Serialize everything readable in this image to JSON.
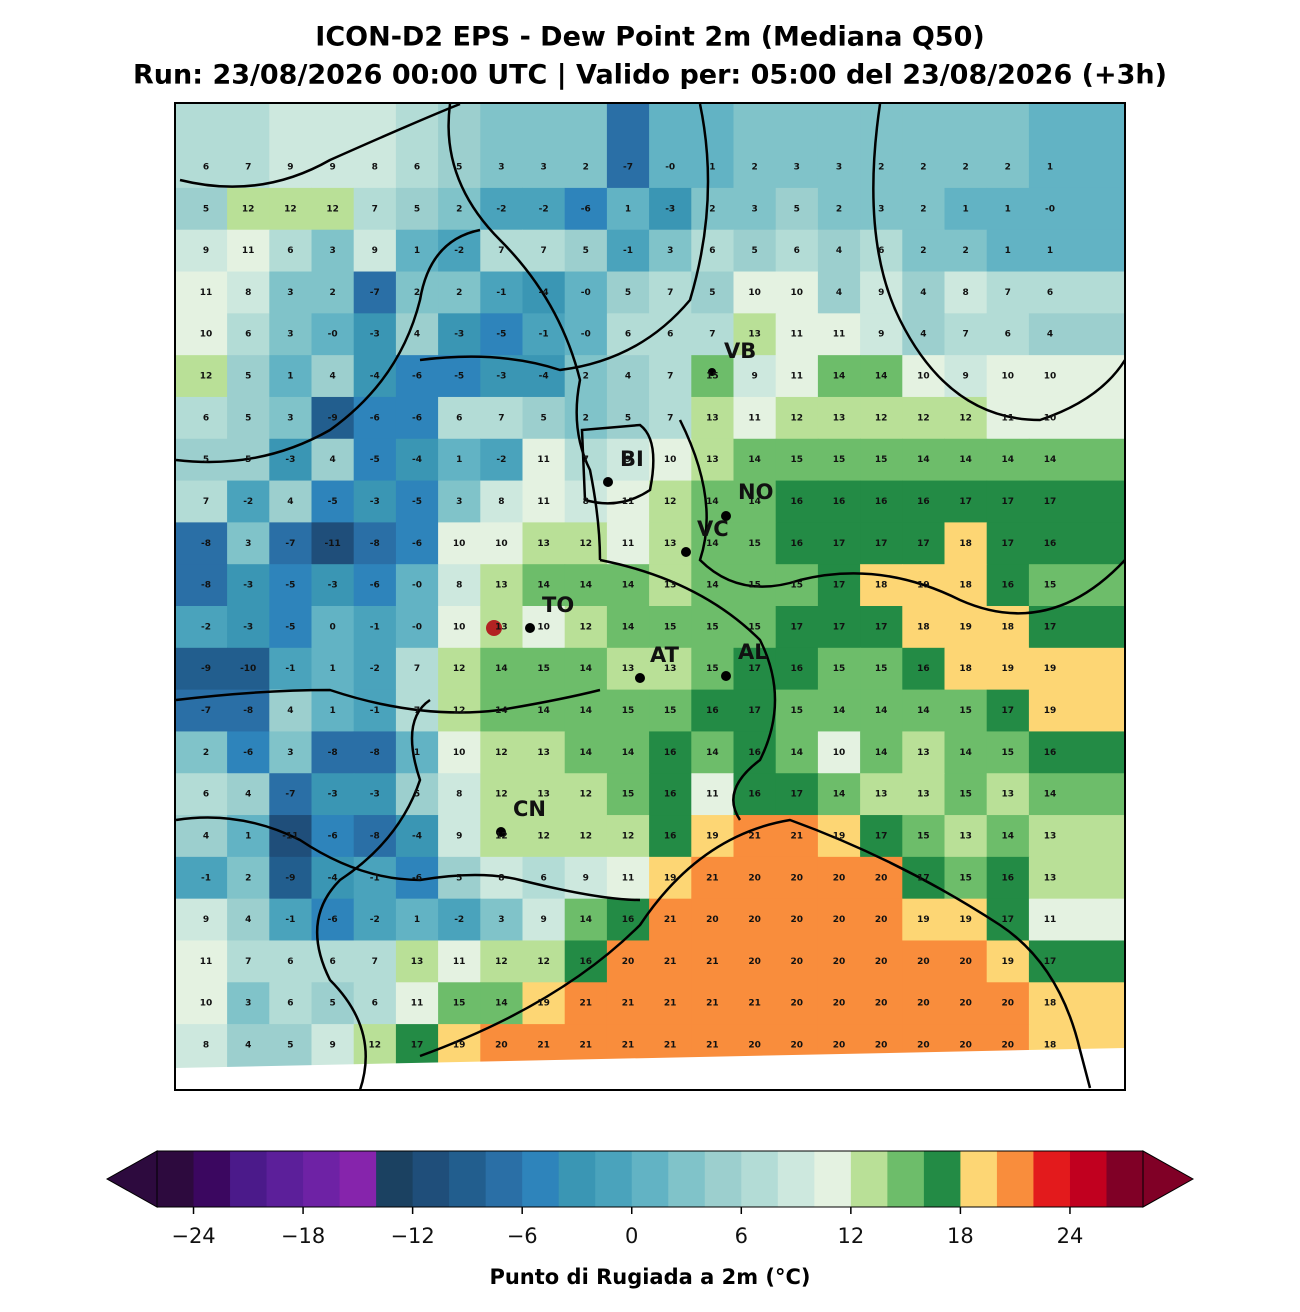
{
  "header": {
    "title": "ICON-D2 EPS - Dew Point 2m (Mediana Q50)",
    "subtitle": "Run: 23/08/2026 00:00 UTC | Valido per: 05:00 del 23/08/2026 (+3h)"
  },
  "map": {
    "values": [
      [
        6,
        7,
        9,
        9,
        8,
        6,
        5,
        3,
        3,
        2,
        -7,
        "-0",
        1,
        2,
        3,
        3,
        2,
        2,
        2,
        2,
        1
      ],
      [
        5,
        12,
        12,
        12,
        7,
        5,
        2,
        -2,
        -2,
        -6,
        1,
        -3,
        2,
        3,
        5,
        2,
        3,
        2,
        1,
        1,
        "-0"
      ],
      [
        9,
        11,
        6,
        3,
        9,
        1,
        -2,
        7,
        7,
        5,
        -1,
        3,
        6,
        5,
        6,
        4,
        6,
        2,
        2,
        1,
        1
      ],
      [
        11,
        8,
        3,
        2,
        -7,
        2,
        2,
        -1,
        -4,
        "-0",
        5,
        7,
        5,
        10,
        10,
        4,
        9,
        4,
        8,
        7,
        6
      ],
      [
        10,
        6,
        3,
        "-0",
        -3,
        4,
        -3,
        -5,
        -1,
        "-0",
        6,
        6,
        7,
        13,
        11,
        11,
        9,
        4,
        7,
        6,
        4
      ],
      [
        12,
        5,
        1,
        4,
        -4,
        -6,
        -5,
        -3,
        -4,
        2,
        4,
        7,
        15,
        9,
        11,
        14,
        14,
        10,
        9,
        10,
        10
      ],
      [
        6,
        5,
        3,
        -9,
        -6,
        -6,
        6,
        7,
        5,
        2,
        5,
        7,
        13,
        11,
        12,
        13,
        12,
        12,
        12,
        11,
        10
      ],
      [
        5,
        5,
        -3,
        4,
        -5,
        -4,
        1,
        -2,
        11,
        7,
        9,
        10,
        13,
        14,
        15,
        15,
        15,
        14,
        14,
        14,
        14
      ],
      [
        7,
        -2,
        4,
        -5,
        -3,
        -5,
        3,
        8,
        11,
        8,
        11,
        12,
        14,
        14,
        16,
        16,
        16,
        16,
        17,
        17,
        17
      ],
      [
        -8,
        3,
        -7,
        -11,
        -8,
        -6,
        10,
        10,
        13,
        12,
        11,
        13,
        14,
        15,
        16,
        17,
        17,
        17,
        18,
        17,
        16
      ],
      [
        -8,
        -3,
        -5,
        -3,
        -6,
        "-0",
        8,
        13,
        14,
        14,
        14,
        13,
        14,
        15,
        15,
        17,
        18,
        19,
        18,
        16,
        15
      ],
      [
        -2,
        -3,
        -5,
        0,
        -1,
        "-0",
        10,
        13,
        10,
        12,
        14,
        15,
        15,
        15,
        17,
        17,
        17,
        18,
        19,
        18,
        17
      ],
      [
        -9,
        -10,
        -1,
        1,
        -2,
        7,
        12,
        14,
        15,
        14,
        13,
        13,
        15,
        17,
        16,
        15,
        15,
        16,
        18,
        19,
        19
      ],
      [
        -7,
        -8,
        4,
        1,
        -1,
        7,
        12,
        14,
        14,
        14,
        15,
        15,
        16,
        17,
        15,
        14,
        14,
        14,
        15,
        17,
        19
      ],
      [
        2,
        -6,
        3,
        -8,
        -8,
        1,
        10,
        12,
        13,
        14,
        14,
        16,
        14,
        16,
        14,
        10,
        14,
        13,
        14,
        15,
        16
      ],
      [
        6,
        4,
        -7,
        -3,
        -3,
        5,
        8,
        12,
        13,
        12,
        15,
        16,
        11,
        16,
        17,
        14,
        13,
        13,
        15,
        13,
        14
      ],
      [
        4,
        1,
        -11,
        -6,
        -8,
        -4,
        9,
        12,
        12,
        12,
        12,
        16,
        19,
        21,
        21,
        19,
        17,
        15,
        13,
        14,
        13
      ],
      [
        -1,
        2,
        -9,
        -4,
        -1,
        -6,
        5,
        8,
        6,
        9,
        11,
        19,
        21,
        20,
        20,
        20,
        20,
        17,
        15,
        16,
        13
      ],
      [
        9,
        4,
        -1,
        -6,
        -2,
        1,
        -2,
        3,
        9,
        14,
        16,
        21,
        20,
        20,
        20,
        20,
        20,
        19,
        19,
        17,
        11
      ],
      [
        11,
        7,
        6,
        6,
        7,
        13,
        11,
        12,
        12,
        16,
        20,
        21,
        21,
        20,
        20,
        20,
        20,
        20,
        20,
        19,
        17
      ],
      [
        10,
        3,
        6,
        5,
        6,
        11,
        15,
        14,
        19,
        21,
        21,
        21,
        21,
        21,
        20,
        20,
        20,
        20,
        20,
        20,
        18
      ],
      [
        8,
        4,
        5,
        9,
        12,
        17,
        19,
        20,
        21,
        21,
        21,
        21,
        21,
        20,
        20,
        20,
        20,
        20,
        20,
        20,
        18
      ]
    ],
    "cities": [
      "VB",
      "BI",
      "NO",
      "VC",
      "TO",
      "AT",
      "AL",
      "CN"
    ]
  },
  "colorbar": {
    "label": "Punto di Rugiada a 2m (°C)",
    "range": [
      -26,
      28
    ],
    "colors": [
      "#2d0a3e",
      "#3b0760",
      "#4b1a8a",
      "#5c1f9a",
      "#6e22a5",
      "#8624ac",
      "#1b4161",
      "#1f4e7a",
      "#225e8e",
      "#2a6fa6",
      "#2e84bb",
      "#3a96b4",
      "#4aa3bc",
      "#62b3c4",
      "#80c3c9",
      "#9ccfce",
      "#b3dcd6",
      "#cde8de",
      "#e4f2e1",
      "#b9e097",
      "#6dbd6a",
      "#238b45",
      "#fdd674",
      "#f98d3c",
      "#e31a1c",
      "#c1001f",
      "#800026"
    ],
    "ticks": [
      {
        "value": -24,
        "label": "−24"
      },
      {
        "value": -18,
        "label": "−18"
      },
      {
        "value": -12,
        "label": "−12"
      },
      {
        "value": -6,
        "label": "−6"
      },
      0,
      6,
      12,
      18,
      24
    ]
  }
}
